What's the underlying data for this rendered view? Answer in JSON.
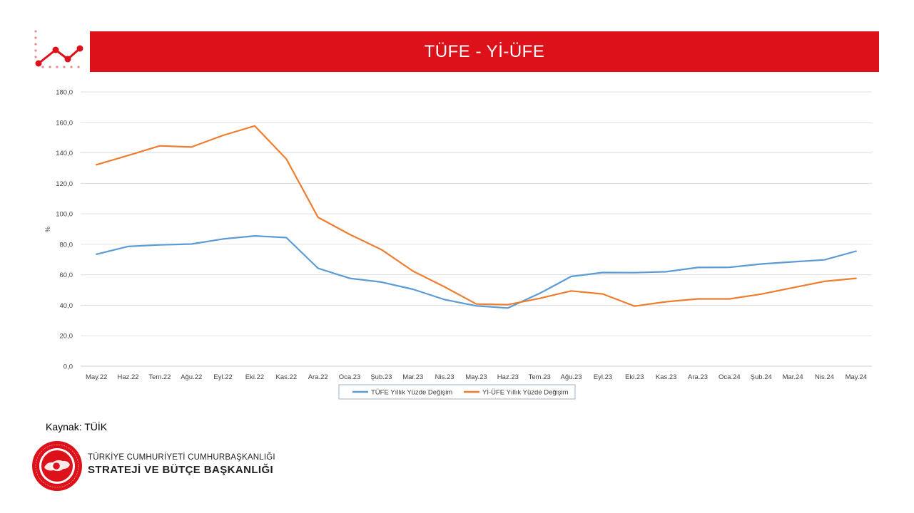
{
  "header": {
    "title": "TÜFE - Yİ-ÜFE"
  },
  "chart_data": {
    "type": "line",
    "title": "TÜFE - Yİ-ÜFE",
    "xlabel": "",
    "ylabel": "%",
    "ylim": [
      0,
      180
    ],
    "y_ticks": [
      "0,0",
      "20,0",
      "40,0",
      "60,0",
      "80,0",
      "100,0",
      "120,0",
      "140,0",
      "160,0",
      "180,0"
    ],
    "y_tick_values": [
      0,
      20,
      40,
      60,
      80,
      100,
      120,
      140,
      160,
      180
    ],
    "grid": true,
    "legend_position": "bottom",
    "categories": [
      "May.22",
      "Haz.22",
      "Tem.22",
      "Ağu.22",
      "Eyl.22",
      "Eki.22",
      "Kas.22",
      "Ara.22",
      "Oca.23",
      "Şub.23",
      "Mar.23",
      "Nis.23",
      "May.23",
      "Haz.23",
      "Tem.23",
      "Ağu.23",
      "Eyl.23",
      "Eki.23",
      "Kas.23",
      "Ara.23",
      "Oca.24",
      "Şub.24",
      "Mar.24",
      "Nis.24",
      "May.24"
    ],
    "series": [
      {
        "name": "TÜFE Yıllık Yüzde Değişim",
        "color": "#5b9bd5",
        "values": [
          73.5,
          78.6,
          79.6,
          80.2,
          83.5,
          85.5,
          84.4,
          64.3,
          57.7,
          55.2,
          50.5,
          43.7,
          39.6,
          38.2,
          47.8,
          58.9,
          61.5,
          61.4,
          62.0,
          64.8,
          64.9,
          67.1,
          68.5,
          69.8,
          75.5
        ]
      },
      {
        "name": "Yİ-ÜFE Yıllık Yüzde Değişim",
        "color": "#ed7d31",
        "values": [
          132.2,
          138.3,
          144.6,
          143.8,
          151.5,
          157.7,
          136.0,
          97.7,
          86.5,
          76.6,
          62.4,
          52.1,
          40.8,
          40.4,
          44.5,
          49.4,
          47.4,
          39.4,
          42.3,
          44.2,
          44.2,
          47.3,
          51.5,
          55.7,
          57.7
        ]
      }
    ]
  },
  "footer": {
    "source": "Kaynak: TÜİK",
    "org_line1": "TÜRKİYE CUMHURİYETİ CUMHURBAŞKANLIĞI",
    "org_line2": "STRATEJİ VE BÜTÇE BAŞKANLIĞI",
    "seal_text": "T.C. CUMHURBAŞKANLIĞI STRATEJİ VE BÜTÇE BAŞKANLIĞI"
  },
  "colors": {
    "accent": "#dc111a",
    "grid": "#d9d9d9",
    "axis_text": "#404040"
  }
}
